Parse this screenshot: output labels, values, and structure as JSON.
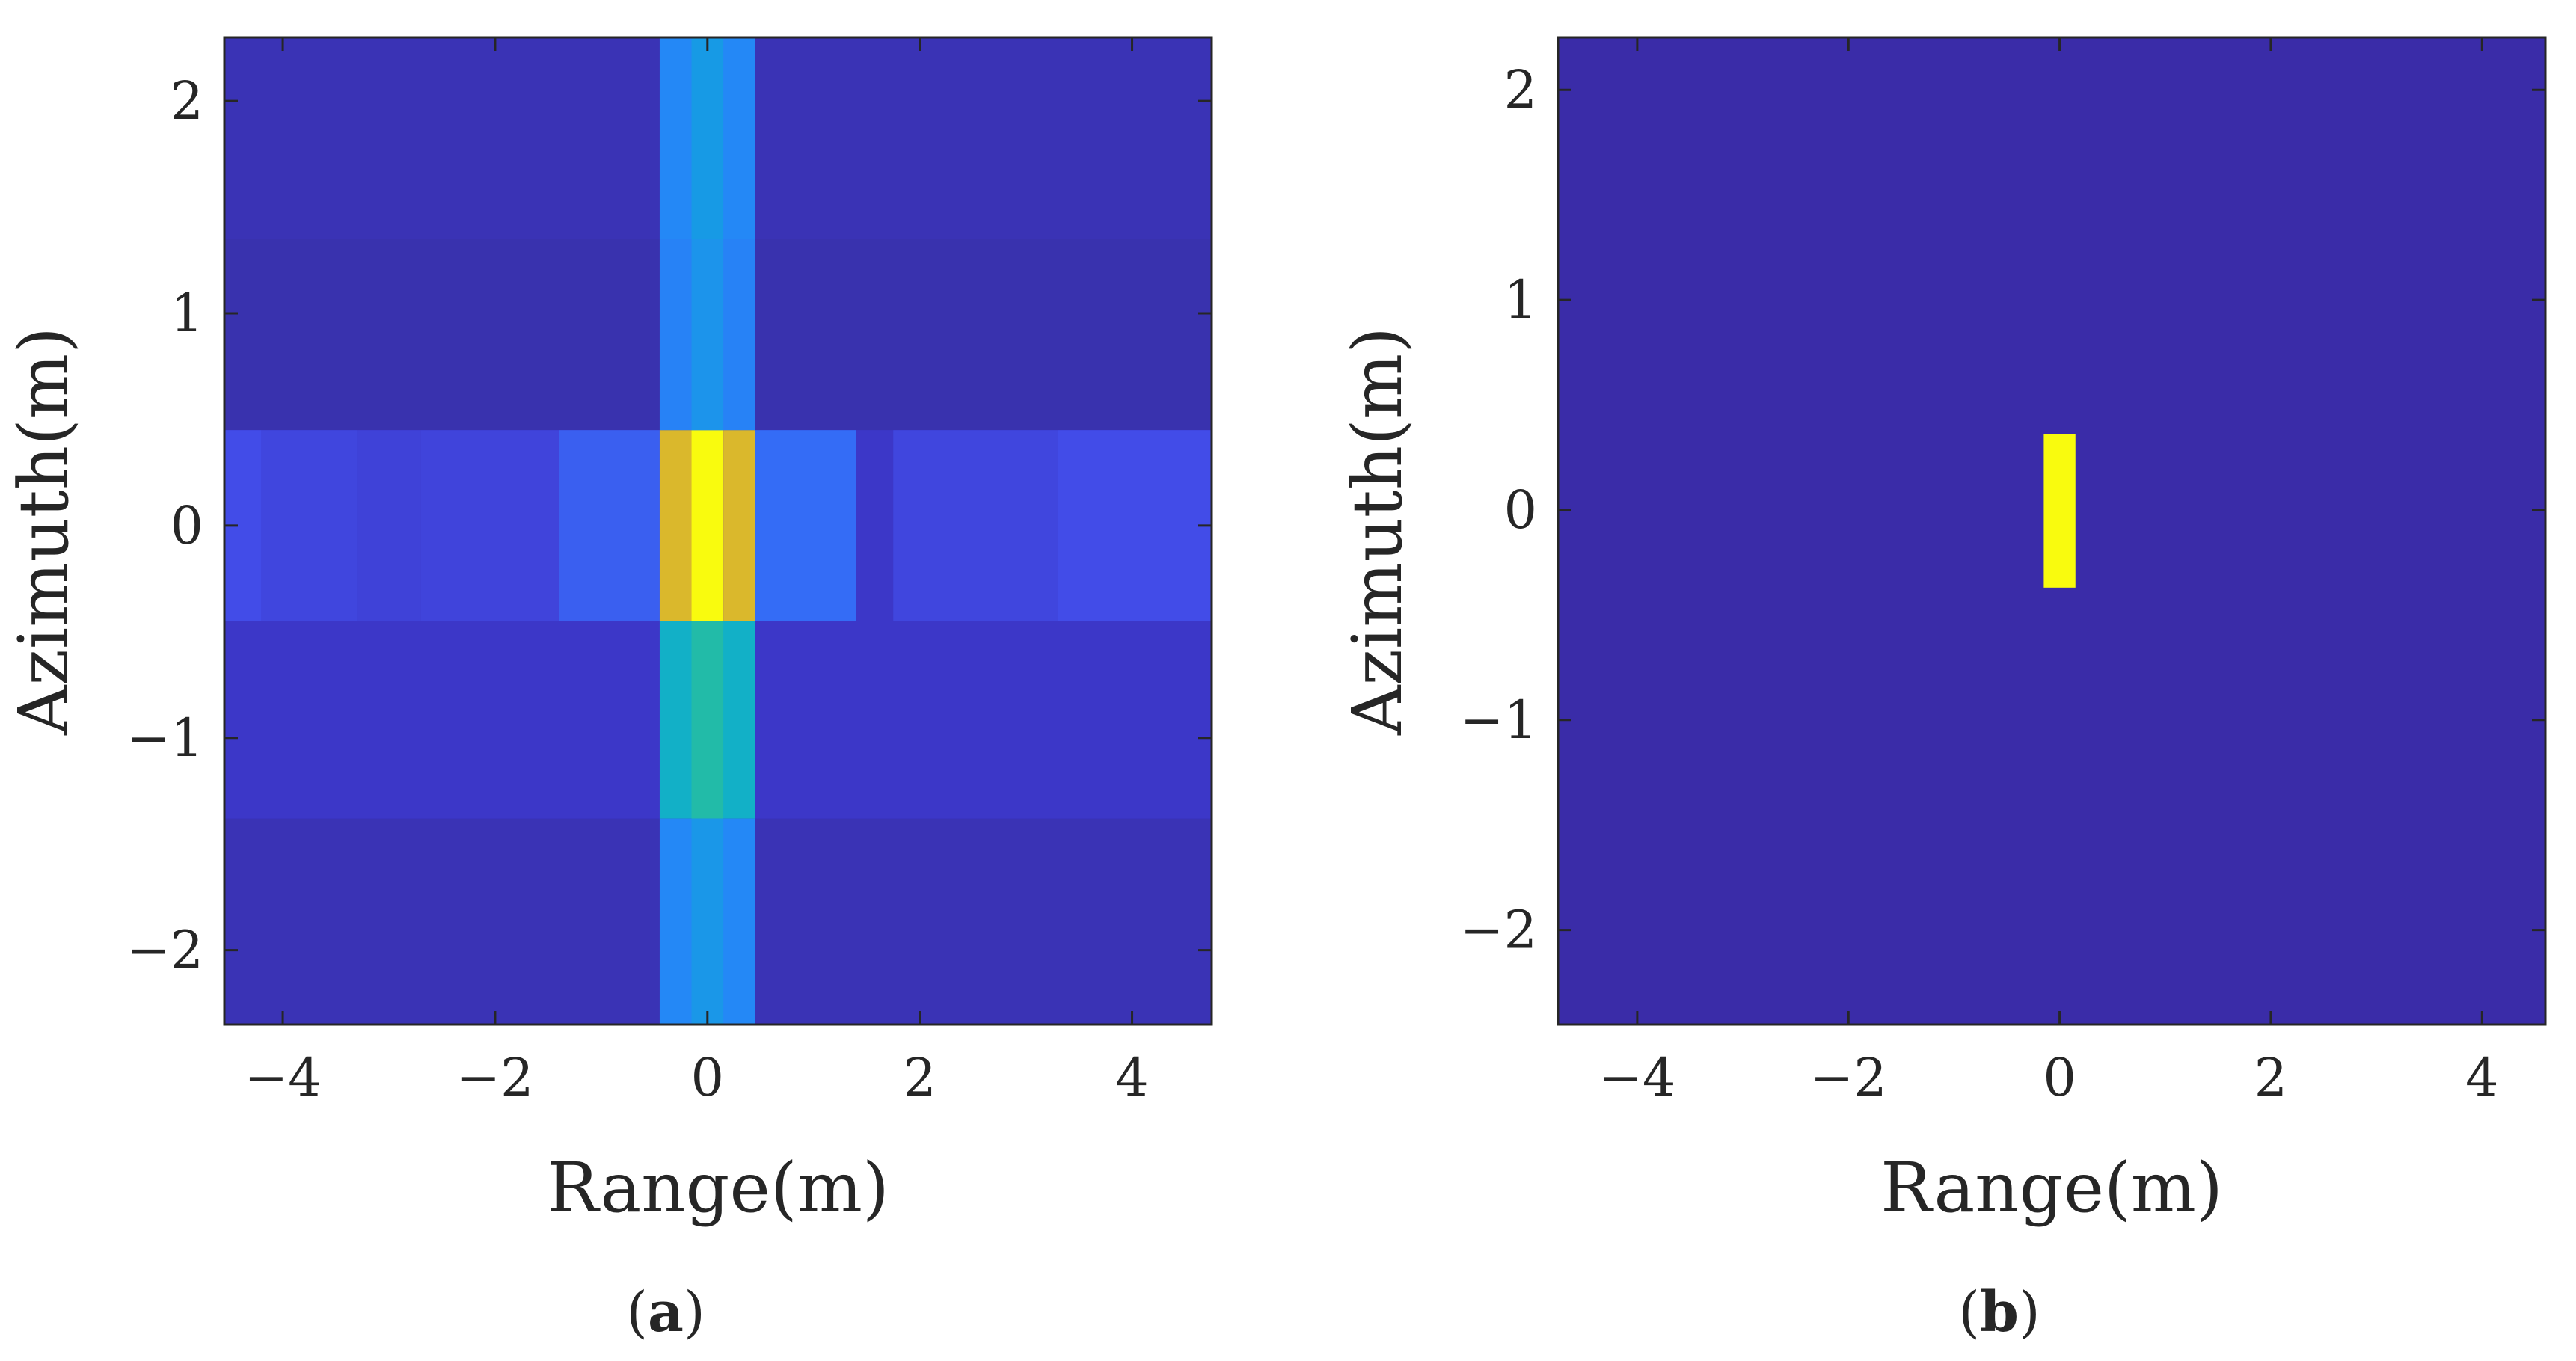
{
  "chart_data": [
    {
      "panel": "a",
      "type": "heatmap",
      "caption": "(a)",
      "caption_letter": "a",
      "xlabel": "Range(m)",
      "ylabel": "Azimuth(m)",
      "xlim": [
        -4.55,
        4.75
      ],
      "ylim": [
        -2.35,
        2.3
      ],
      "xticks": [
        -4,
        -2,
        0,
        2,
        4
      ],
      "xtick_labels": [
        "−4",
        "−2",
        "0",
        "2",
        "4"
      ],
      "yticks": [
        -2,
        -1,
        0,
        1,
        2
      ],
      "ytick_labels": [
        "−2",
        "−1",
        "0",
        "1",
        "2"
      ],
      "colormap": "parula",
      "background_color": "#3a2fb6",
      "cells": [
        {
          "x0": -4.55,
          "x1": 4.75,
          "y0": 1.35,
          "y1": 2.3,
          "value": 0.07
        },
        {
          "x0": -4.55,
          "x1": 4.75,
          "y0": -2.35,
          "y1": -1.38,
          "value": 0.07
        },
        {
          "x0": -4.55,
          "x1": 4.75,
          "y0": 0.45,
          "y1": 1.35,
          "value": 0.06
        },
        {
          "x0": -4.55,
          "x1": 4.75,
          "y0": -1.38,
          "y1": -0.45,
          "value": 0.1
        },
        {
          "x0": -4.55,
          "x1": -4.2,
          "y0": -0.45,
          "y1": 0.45,
          "value": 0.2
        },
        {
          "x0": -4.2,
          "x1": -3.3,
          "y0": -0.45,
          "y1": 0.45,
          "value": 0.17
        },
        {
          "x0": -3.3,
          "x1": -2.7,
          "y0": -0.45,
          "y1": 0.45,
          "value": 0.15
        },
        {
          "x0": -2.7,
          "x1": -1.4,
          "y0": -0.45,
          "y1": 0.45,
          "value": 0.16
        },
        {
          "x0": -1.4,
          "x1": -0.45,
          "y0": -0.45,
          "y1": 0.45,
          "value": 0.26
        },
        {
          "x0": -0.45,
          "x1": -0.15,
          "y0": -0.45,
          "y1": 0.45,
          "value": 0.82
        },
        {
          "x0": -0.15,
          "x1": 0.15,
          "y0": -0.45,
          "y1": 0.45,
          "value": 1.0
        },
        {
          "x0": 0.15,
          "x1": 0.45,
          "y0": -0.45,
          "y1": 0.45,
          "value": 0.82
        },
        {
          "x0": 0.45,
          "x1": 1.4,
          "y0": -0.45,
          "y1": 0.45,
          "value": 0.3
        },
        {
          "x0": 1.4,
          "x1": 1.75,
          "y0": -0.45,
          "y1": 0.45,
          "value": 0.1
        },
        {
          "x0": 1.75,
          "x1": 3.3,
          "y0": -0.45,
          "y1": 0.45,
          "value": 0.17
        },
        {
          "x0": 3.3,
          "x1": 4.75,
          "y0": -0.45,
          "y1": 0.45,
          "value": 0.2
        },
        {
          "x0": -0.45,
          "x1": 0.45,
          "y0": 1.35,
          "y1": 2.3,
          "value": 0.4
        },
        {
          "x0": -0.15,
          "x1": 0.15,
          "y0": 1.35,
          "y1": 2.3,
          "value": 0.46
        },
        {
          "x0": -0.45,
          "x1": 0.45,
          "y0": 0.45,
          "y1": 1.35,
          "value": 0.38
        },
        {
          "x0": -0.15,
          "x1": 0.15,
          "y0": 0.45,
          "y1": 1.35,
          "value": 0.44
        },
        {
          "x0": -0.45,
          "x1": 0.45,
          "y0": -1.38,
          "y1": -0.45,
          "value": 0.55
        },
        {
          "x0": -0.15,
          "x1": 0.15,
          "y0": -1.38,
          "y1": -0.45,
          "value": 0.62
        },
        {
          "x0": -0.45,
          "x1": 0.45,
          "y0": -2.35,
          "y1": -1.38,
          "value": 0.4
        },
        {
          "x0": -0.15,
          "x1": 0.15,
          "y0": -2.35,
          "y1": -1.38,
          "value": 0.45
        }
      ]
    },
    {
      "panel": "b",
      "type": "heatmap",
      "caption": "(b)",
      "caption_letter": "b",
      "xlabel": "Range(m)",
      "ylabel": "Azimuth(m)",
      "xlim": [
        -4.75,
        4.6
      ],
      "ylim": [
        -2.45,
        2.25
      ],
      "xticks": [
        -4,
        -2,
        0,
        2,
        4
      ],
      "xtick_labels": [
        "−4",
        "−2",
        "0",
        "2",
        "4"
      ],
      "yticks": [
        -2,
        -1,
        0,
        1,
        2
      ],
      "ytick_labels": [
        "−2",
        "−1",
        "0",
        "1",
        "2"
      ],
      "colormap": "parula",
      "background_color": "#3a2ca8",
      "cells": [
        {
          "x0": -0.15,
          "x1": 0.15,
          "y0": -0.37,
          "y1": 0.36,
          "value": 1.0
        }
      ]
    }
  ]
}
